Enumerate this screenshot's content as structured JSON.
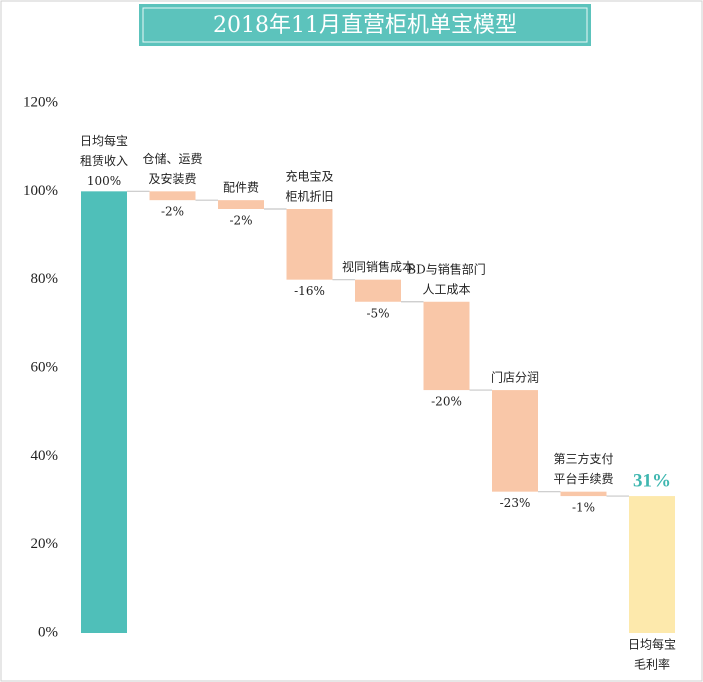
{
  "chart_data": {
    "type": "waterfall",
    "title": "2018年11月直营柜机单宝模型",
    "categories": [
      [
        "日均每宝",
        "租赁收入"
      ],
      [
        "仓储、运费",
        "及安装费"
      ],
      [
        "配件费"
      ],
      [
        "充电宝及",
        "柜机折旧"
      ],
      [
        "视同销售成本"
      ],
      [
        "BD与销售部门",
        "人工成本"
      ],
      [
        "门店分润"
      ],
      [
        "第三方支付",
        "平台手续费"
      ],
      [
        "日均每宝",
        "毛利率"
      ]
    ],
    "values": [
      100,
      -2,
      -2,
      -16,
      -5,
      -20,
      -23,
      -1,
      31
    ],
    "value_labels": [
      "100%",
      "-2%",
      "-2%",
      "-16%",
      "-5%",
      "-20%",
      "-23%",
      "-1%",
      "31%"
    ],
    "colors": [
      "#4fbfb9",
      "#f9c7a8",
      "#f9c7a8",
      "#f9c7a8",
      "#f9c7a8",
      "#f9c7a8",
      "#f9c7a8",
      "#f9c7a8",
      "#fde9ac"
    ],
    "ylim": [
      0,
      120
    ],
    "yticks": [
      {
        "value": 0,
        "label": "0%"
      },
      {
        "value": 20,
        "label": "20%"
      },
      {
        "value": 40,
        "label": "40%"
      },
      {
        "value": 60,
        "label": "60%"
      },
      {
        "value": 80,
        "label": "80%"
      },
      {
        "value": 100,
        "label": "100%"
      },
      {
        "value": 120,
        "label": "120%"
      }
    ],
    "grid": false
  }
}
